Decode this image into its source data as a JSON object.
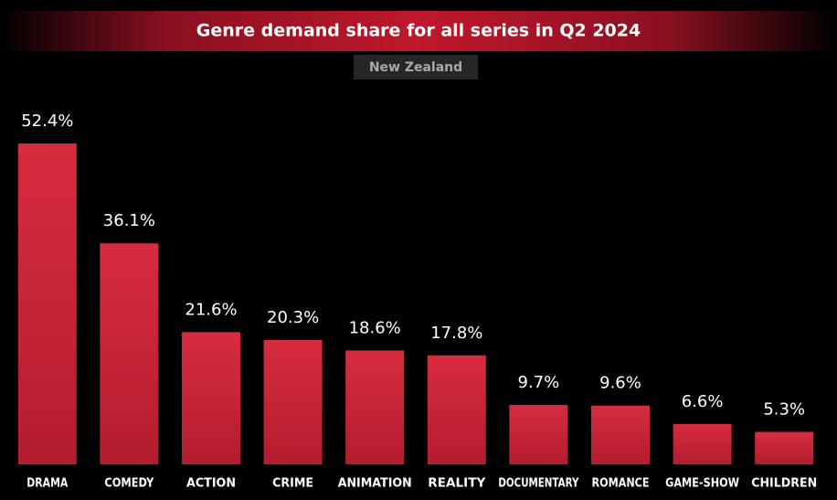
{
  "chart_data": {
    "type": "bar",
    "title": "Genre demand share for all series in Q2 2024",
    "subtitle": "New Zealand",
    "categories": [
      "DRAMA",
      "COMEDY",
      "ACTION",
      "CRIME",
      "ANIMATION",
      "REALITY",
      "DOCUMENTARY",
      "ROMANCE",
      "GAME-SHOW",
      "CHILDREN"
    ],
    "values": [
      52.4,
      36.1,
      21.6,
      20.3,
      18.6,
      17.8,
      9.7,
      9.6,
      6.6,
      5.3
    ],
    "value_labels": [
      "52.4%",
      "36.1%",
      "21.6%",
      "20.3%",
      "18.6%",
      "17.8%",
      "9.7%",
      "9.6%",
      "6.6%",
      "5.3%"
    ],
    "color": "#d32639"
  }
}
